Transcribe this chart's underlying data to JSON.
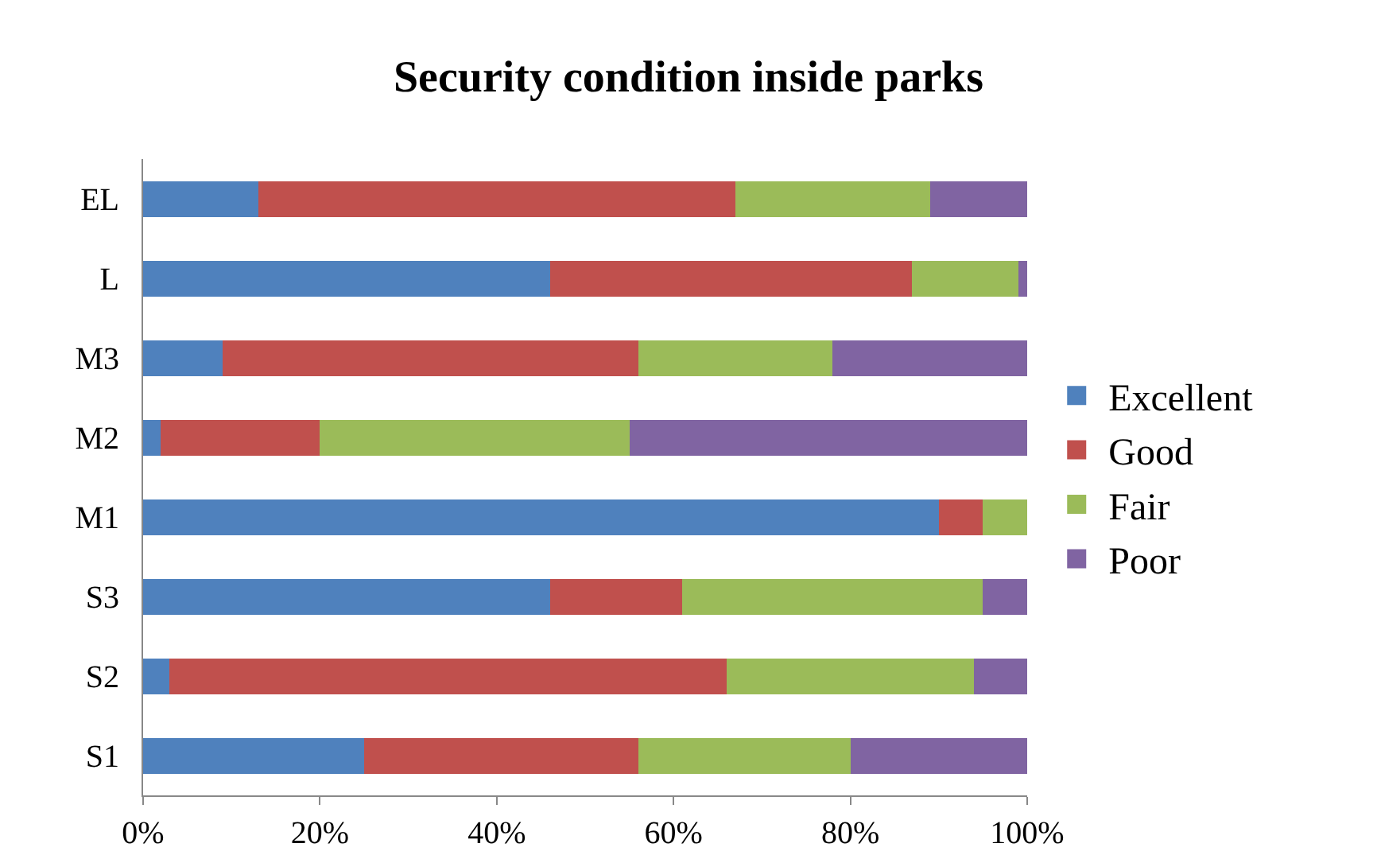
{
  "chart_data": {
    "type": "bar",
    "orientation": "horizontal",
    "stacked": true,
    "title": "Security condition inside parks",
    "categories": [
      "EL",
      "L",
      "M3",
      "M2",
      "M1",
      "S3",
      "S2",
      "S1"
    ],
    "series": [
      {
        "name": "Excellent",
        "color": "#4f81bd",
        "values": [
          13,
          46,
          9,
          2,
          90,
          46,
          3,
          25
        ]
      },
      {
        "name": "Good",
        "color": "#c0504d",
        "values": [
          54,
          41,
          47,
          18,
          5,
          15,
          63,
          31
        ]
      },
      {
        "name": "Fair",
        "color": "#9bbb59",
        "values": [
          22,
          12,
          22,
          35,
          5,
          34,
          28,
          24
        ]
      },
      {
        "name": "Poor",
        "color": "#8064a2",
        "values": [
          11,
          1,
          22,
          45,
          0,
          5,
          6,
          20
        ]
      }
    ],
    "xlim": [
      0,
      100
    ],
    "xticks": [
      {
        "value": 0,
        "label": "0%"
      },
      {
        "value": 20,
        "label": "20%"
      },
      {
        "value": 40,
        "label": "40%"
      },
      {
        "value": 60,
        "label": "60%"
      },
      {
        "value": 80,
        "label": "80%"
      },
      {
        "value": 100,
        "label": "100%"
      }
    ],
    "grid": false,
    "legend": "right"
  }
}
